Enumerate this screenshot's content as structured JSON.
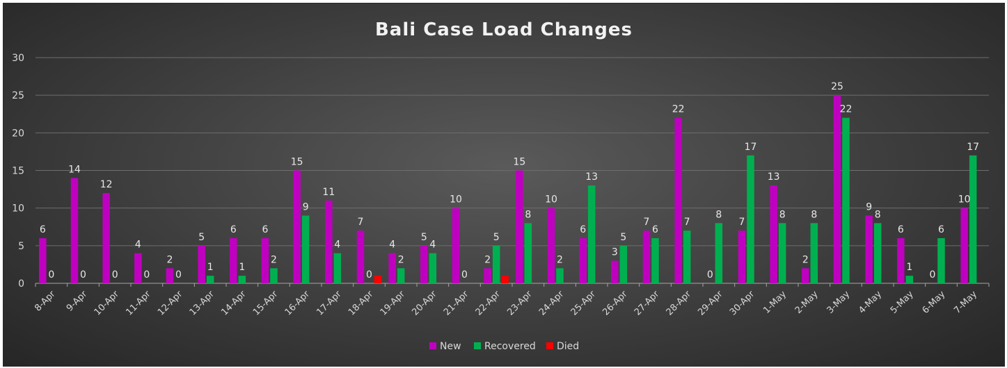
{
  "chart_data": {
    "type": "bar",
    "title": "Bali Case Load Changes",
    "xlabel": "",
    "ylabel": "",
    "ylim": [
      0,
      30
    ],
    "yticks": [
      0,
      5,
      10,
      15,
      20,
      25,
      30
    ],
    "grid": true,
    "legend_position": "bottom",
    "categories": [
      "8-Apr",
      "9-Apr",
      "10-Apr",
      "11-Apr",
      "12-Apr",
      "13-Apr",
      "14-Apr",
      "15-Apr",
      "16-Apr",
      "17-Apr",
      "18-Apr",
      "19-Apr",
      "20-Apr",
      "21-Apr",
      "22-Apr",
      "23-Apr",
      "24-Apr",
      "25-Apr",
      "26-Apr",
      "27-Apr",
      "28-Apr",
      "29-Apr",
      "30-Apr",
      "1-May",
      "2-May",
      "3-May",
      "4-May",
      "5-May",
      "6-May",
      "7-May"
    ],
    "series": [
      {
        "name": "New",
        "color": "#c000c0",
        "values": [
          6,
          14,
          12,
          4,
          2,
          5,
          6,
          6,
          15,
          11,
          7,
          4,
          5,
          10,
          2,
          15,
          10,
          6,
          3,
          7,
          22,
          0,
          7,
          13,
          2,
          25,
          9,
          6,
          0,
          10
        ]
      },
      {
        "name": "Recovered",
        "color": "#00b050",
        "values": [
          0,
          0,
          0,
          0,
          0,
          1,
          1,
          2,
          9,
          4,
          0,
          2,
          4,
          0,
          5,
          8,
          2,
          13,
          5,
          6,
          7,
          8,
          17,
          8,
          8,
          22,
          8,
          1,
          6,
          17
        ]
      },
      {
        "name": "Died",
        "color": "#ff0000",
        "values": [
          0,
          0,
          0,
          0,
          0,
          0,
          0,
          0,
          0,
          0,
          1,
          0,
          0,
          0,
          1,
          0,
          0,
          0,
          0,
          0,
          0,
          0,
          0,
          0,
          0,
          0,
          0,
          0,
          0,
          0
        ]
      }
    ],
    "data_labels": {
      "New": [
        "6",
        "14",
        "12",
        "4",
        "2",
        "5",
        "6",
        "6",
        "15",
        "11",
        "7",
        "4",
        "5",
        "10",
        "2",
        "15",
        "10",
        "6",
        "3",
        "7",
        "22",
        "0",
        "7",
        "13",
        "2",
        "25",
        "9",
        "6",
        "0",
        "10"
      ],
      "Recovered": [
        "0",
        "0",
        "0",
        "0",
        "0",
        "1",
        "1",
        "2",
        "9",
        "4",
        "0",
        "2",
        "4",
        "0",
        "5",
        "8",
        "2",
        "13",
        "5",
        "6",
        "7",
        "8",
        "17",
        "8",
        "8",
        "22",
        "8",
        "1",
        "6",
        "17"
      ]
    }
  }
}
